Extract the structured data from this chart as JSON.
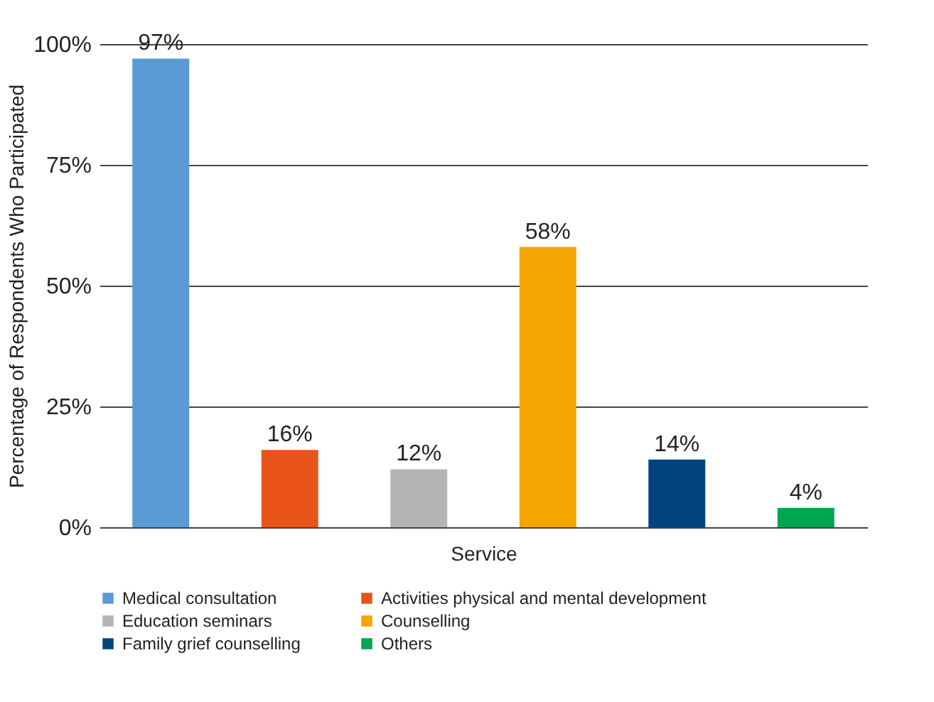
{
  "chart_data": {
    "type": "bar",
    "categories": [
      null,
      null,
      null,
      null,
      null,
      null
    ],
    "series": [
      {
        "name": "Medical consultation",
        "color": "#5b9bd5",
        "values": [
          97,
          null,
          null,
          null,
          null,
          null
        ],
        "value_labels": [
          "97%",
          null,
          null,
          null,
          null,
          null
        ]
      },
      {
        "name": "Activities physical and mental development",
        "color": "#e8541a",
        "values": [
          null,
          16,
          null,
          null,
          null,
          null
        ],
        "value_labels": [
          null,
          "16%",
          null,
          null,
          null,
          null
        ]
      },
      {
        "name": "Education seminars",
        "color": "#b4b4b4",
        "values": [
          null,
          null,
          12,
          null,
          null,
          null
        ],
        "value_labels": [
          null,
          null,
          "12%",
          null,
          null,
          null
        ]
      },
      {
        "name": "Counselling",
        "color": "#f5a500",
        "values": [
          null,
          null,
          null,
          58,
          null,
          null
        ],
        "value_labels": [
          null,
          null,
          null,
          "58%",
          null,
          null
        ]
      },
      {
        "name": "Family grief counselling",
        "color": "#00437f",
        "values": [
          null,
          null,
          null,
          null,
          14,
          null
        ],
        "value_labels": [
          null,
          null,
          null,
          null,
          "14%",
          null
        ]
      },
      {
        "name": "Others",
        "color": "#00a54f",
        "values": [
          null,
          null,
          null,
          null,
          null,
          4
        ],
        "value_labels": [
          null,
          null,
          null,
          null,
          null,
          "4%"
        ]
      }
    ],
    "xlabel": "Service",
    "ylabel": "Percentage of Respondents Who Participated",
    "ylim": [
      0,
      100
    ],
    "yticks": [
      {
        "value": 0,
        "label": "0%"
      },
      {
        "value": 25,
        "label": "25%"
      },
      {
        "value": 50,
        "label": "50%"
      },
      {
        "value": 75,
        "label": "75%"
      },
      {
        "value": 100,
        "label": "100%"
      }
    ],
    "grid": "y",
    "legend": "bottom",
    "tick_labels": "y"
  }
}
